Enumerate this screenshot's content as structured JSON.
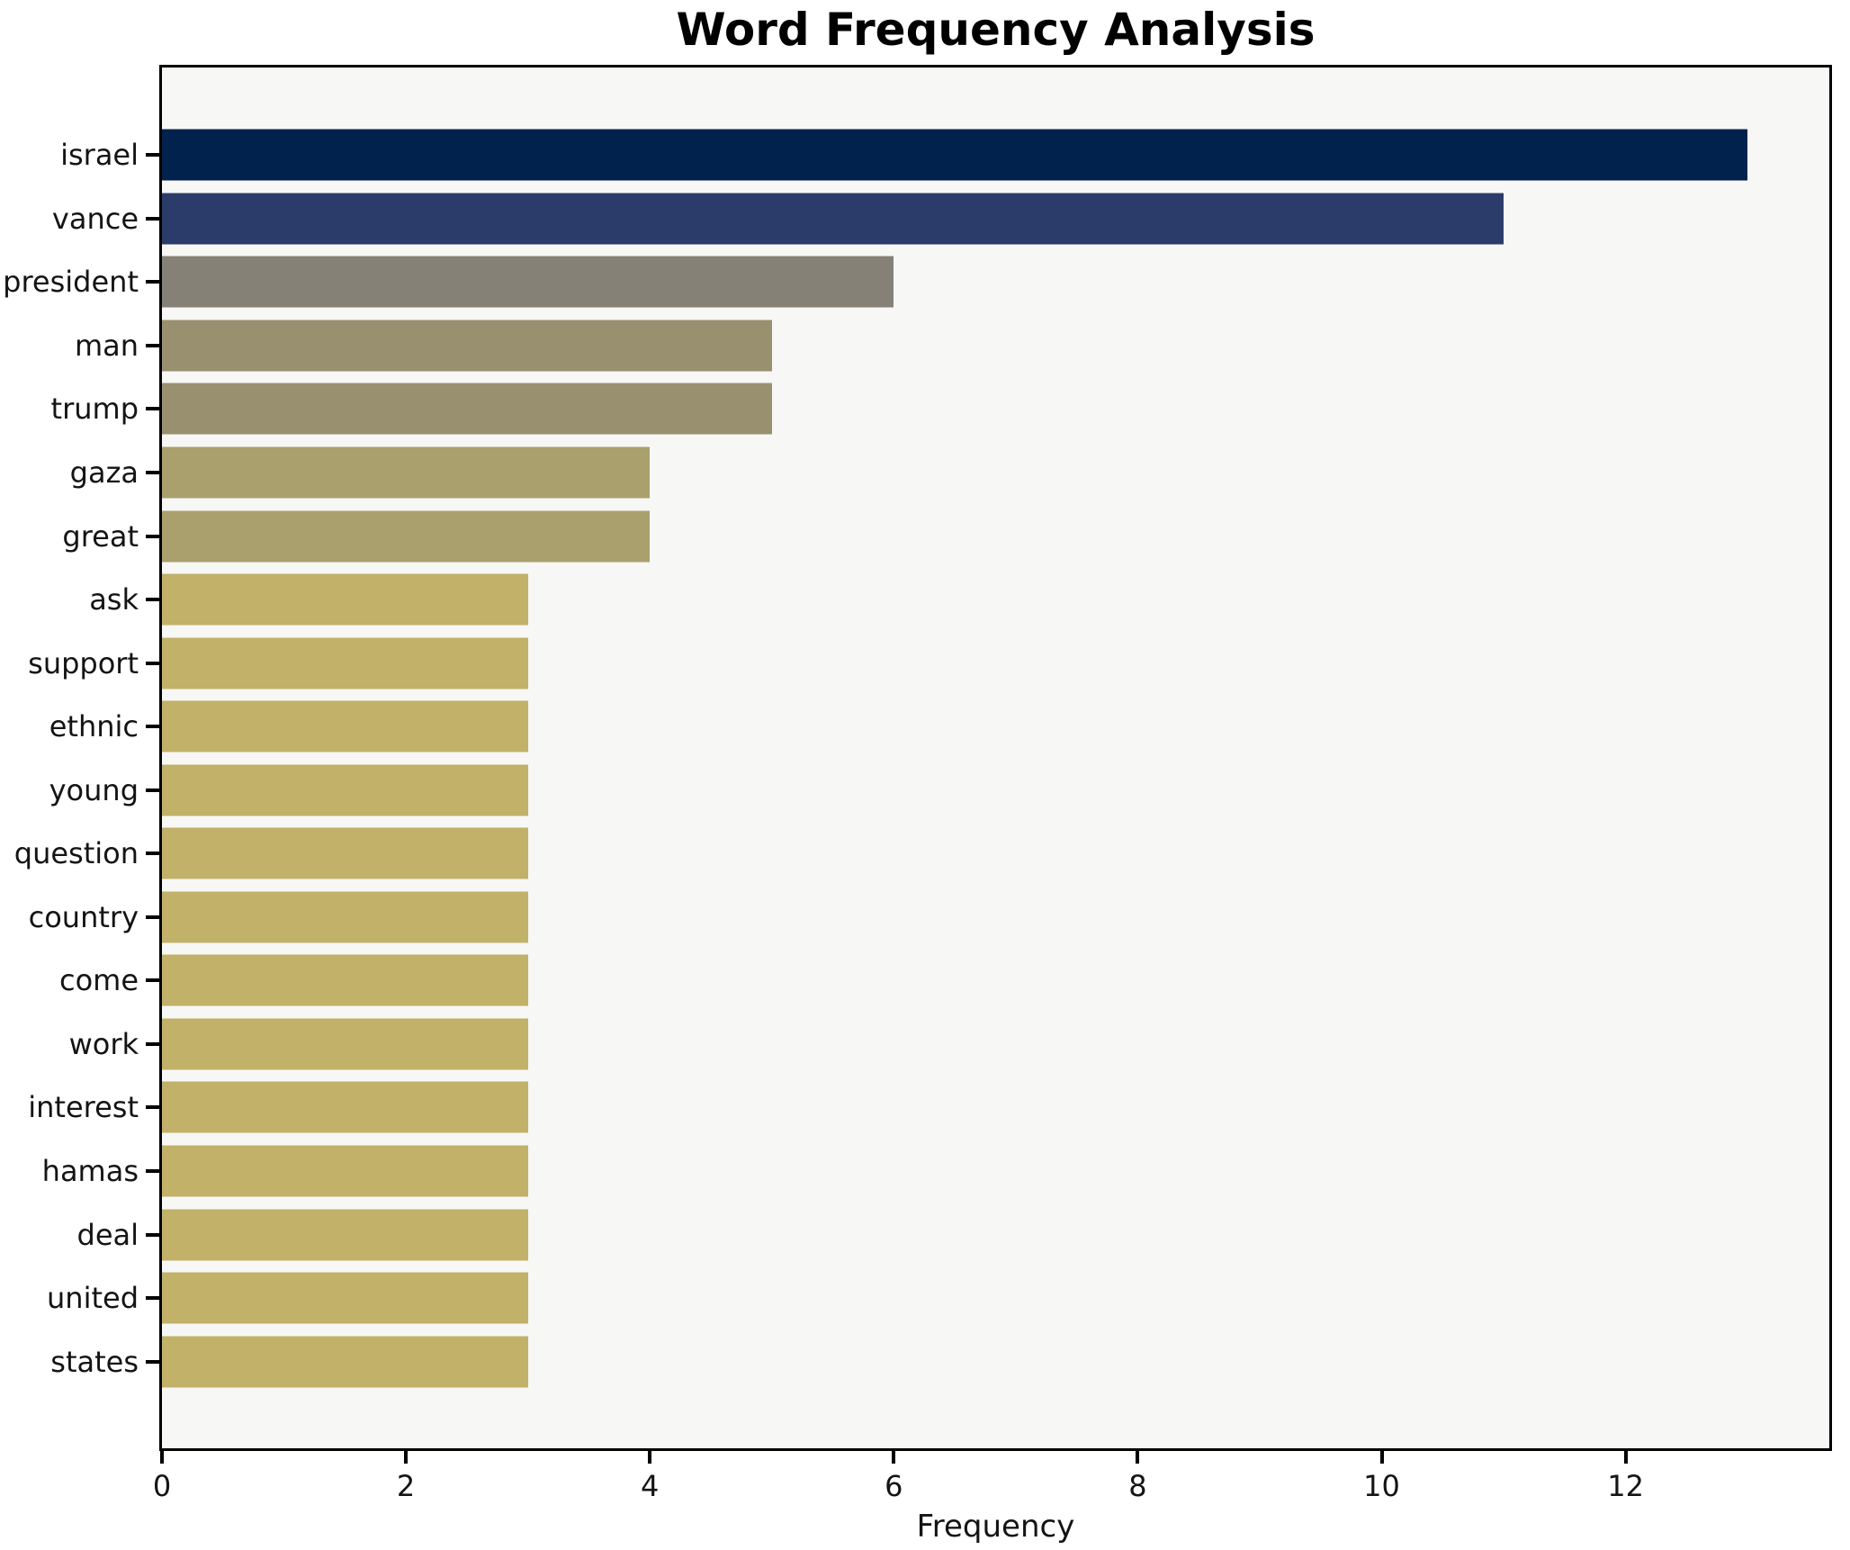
{
  "chart_data": {
    "type": "bar",
    "orientation": "horizontal",
    "title": "Word Frequency Analysis",
    "xlabel": "Frequency",
    "ylabel": "",
    "grid": false,
    "legend": null,
    "xlim": [
      0,
      13.67
    ],
    "x_ticks": [
      0,
      2,
      4,
      6,
      8,
      10,
      12
    ],
    "categories": [
      "israel",
      "vance",
      "president",
      "man",
      "trump",
      "gaza",
      "great",
      "ask",
      "support",
      "ethnic",
      "young",
      "question",
      "country",
      "come",
      "work",
      "interest",
      "hamas",
      "deal",
      "united",
      "states"
    ],
    "values": [
      13,
      11,
      6,
      5,
      5,
      4,
      4,
      3,
      3,
      3,
      3,
      3,
      3,
      3,
      3,
      3,
      3,
      3,
      3,
      3
    ],
    "bar_colors": [
      "#02224e",
      "#2b3c6b",
      "#858177",
      "#999070",
      "#999070",
      "#aaa06e",
      "#aaa06e",
      "#c1b169",
      "#c1b169",
      "#c1b169",
      "#c1b169",
      "#c1b169",
      "#c1b169",
      "#c1b169",
      "#c1b169",
      "#c1b169",
      "#c1b169",
      "#c1b169",
      "#c1b169",
      "#c1b169"
    ],
    "colors": {
      "plot_background": "#f7f7f5",
      "figure_background": "#ffffff",
      "axis_spine": "#000000",
      "text": "#141414"
    }
  }
}
